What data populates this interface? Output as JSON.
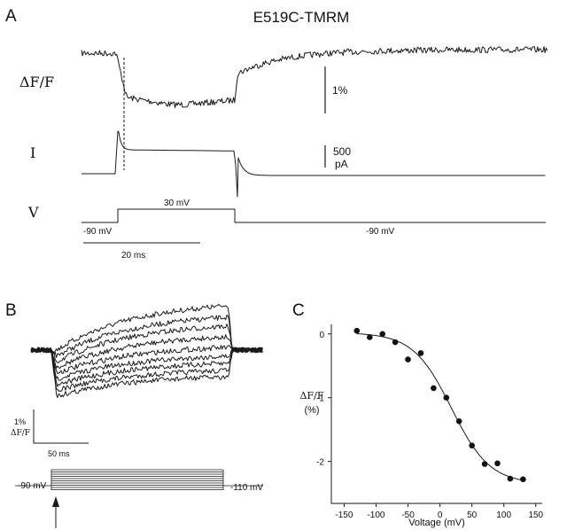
{
  "panel_a": {
    "letter": "A",
    "title": "E519C-TMRM",
    "row_fluor": "ΔF/F",
    "row_current": "I",
    "row_voltage": "V",
    "scale_fluor": "1%",
    "scale_current_value": "500",
    "scale_current_unit": "pA",
    "step_level": "30 mV",
    "hold_left": "-90 mV",
    "hold_right": "-90 mV",
    "time_scale": "20 ms"
  },
  "panel_b": {
    "letter": "B",
    "scale_fluor_value": "1%",
    "scale_fluor_unit": "ΔF/F",
    "time_scale": "50 ms",
    "hold_left": "-90 mV",
    "hold_right": "-110 mV"
  },
  "panel_c": {
    "letter": "C"
  },
  "chart_data": {
    "type": "scatter",
    "title": "",
    "xlabel": "Voltage (mV)",
    "ylabel_line1": "ΔF/F",
    "ylabel_line2": "(%)",
    "xlim": [
      -170,
      160
    ],
    "ylim": [
      -2.45,
      0.15
    ],
    "xticks": [
      -150,
      -100,
      -50,
      0,
      50,
      100,
      150
    ],
    "yticks": [
      0,
      -1,
      -2
    ],
    "points": [
      {
        "x": -130,
        "y": 0.05
      },
      {
        "x": -110,
        "y": -0.05
      },
      {
        "x": -90,
        "y": 0.0
      },
      {
        "x": -70,
        "y": -0.13
      },
      {
        "x": -50,
        "y": -0.4
      },
      {
        "x": -30,
        "y": -0.3
      },
      {
        "x": -10,
        "y": -0.85
      },
      {
        "x": 10,
        "y": -1.0
      },
      {
        "x": 30,
        "y": -1.37
      },
      {
        "x": 50,
        "y": -1.75
      },
      {
        "x": 70,
        "y": -2.04
      },
      {
        "x": 90,
        "y": -2.03
      },
      {
        "x": 110,
        "y": -2.27
      },
      {
        "x": 130,
        "y": -2.28
      }
    ],
    "fit": {
      "type": "boltzmann",
      "top": 0.02,
      "bottom": -2.35,
      "v_half": 18,
      "slope": 30
    }
  }
}
